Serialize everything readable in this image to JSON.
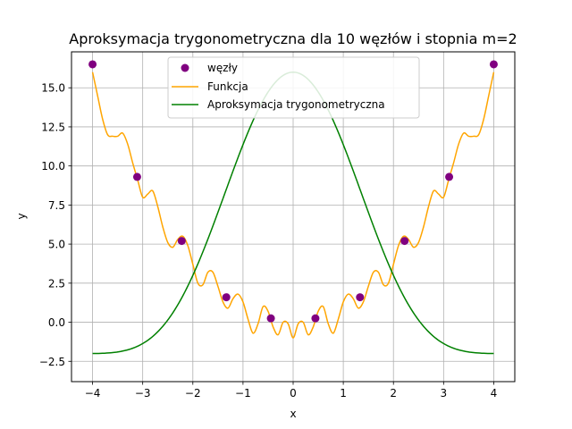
{
  "chart_data": {
    "type": "line",
    "title": "Aproksymacja trygonometryczna dla 10 węzłów i stopnia m=2",
    "xlabel": "x",
    "ylabel": "y",
    "xlim": [
      -4.42,
      4.42
    ],
    "ylim": [
      -3.8,
      17.3
    ],
    "xticks": [
      -4,
      -3,
      -2,
      -1,
      0,
      1,
      2,
      3,
      4
    ],
    "xtick_labels": [
      "−4",
      "−3",
      "−2",
      "−1",
      "0",
      "1",
      "2",
      "3",
      "4"
    ],
    "yticks": [
      -2.5,
      0.0,
      2.5,
      5.0,
      7.5,
      10.0,
      12.5,
      15.0
    ],
    "ytick_labels": [
      "−2.5",
      "0.0",
      "2.5",
      "5.0",
      "7.5",
      "10.0",
      "12.5",
      "15.0"
    ],
    "grid": true,
    "legend_position": "top-center",
    "series": [
      {
        "name": "węzły",
        "kind": "scatter",
        "color": "#800080",
        "x": [
          -4.0,
          -3.111,
          -2.222,
          -1.333,
          -0.444,
          0.444,
          1.333,
          2.222,
          3.111,
          4.0
        ],
        "y": [
          16.5,
          9.3,
          5.2,
          1.6,
          0.25,
          0.25,
          1.6,
          5.2,
          9.3,
          16.5
        ]
      },
      {
        "name": "Funkcja",
        "kind": "line",
        "color": "#ffa500",
        "x": [
          -4.0,
          -3.9,
          -3.8,
          -3.7,
          -3.6,
          -3.5,
          -3.4,
          -3.3,
          -3.2,
          -3.1,
          -3.0,
          -2.9,
          -2.8,
          -2.7,
          -2.6,
          -2.5,
          -2.4,
          -2.3,
          -2.2,
          -2.1,
          -2.0,
          -1.9,
          -1.8,
          -1.7,
          -1.6,
          -1.5,
          -1.4,
          -1.3,
          -1.2,
          -1.1,
          -1.0,
          -0.9,
          -0.8,
          -0.7,
          -0.6,
          -0.5,
          -0.4,
          -0.3,
          -0.2,
          -0.1,
          0.0,
          0.1,
          0.2,
          0.3,
          0.4,
          0.5,
          0.6,
          0.7,
          0.8,
          0.9,
          1.0,
          1.1,
          1.2,
          1.3,
          1.4,
          1.5,
          1.6,
          1.7,
          1.8,
          1.9,
          2.0,
          2.1,
          2.2,
          2.3,
          2.4,
          2.5,
          2.6,
          2.7,
          2.8,
          2.9,
          3.0,
          3.1,
          3.2,
          3.3,
          3.4,
          3.5,
          3.6,
          3.7,
          3.8,
          3.9,
          4.0
        ],
        "y": [
          16.0,
          14.5,
          13.0,
          12.0,
          11.9,
          11.9,
          12.1,
          11.4,
          10.2,
          9.1,
          8.0,
          8.2,
          8.4,
          7.4,
          6.1,
          5.1,
          4.8,
          5.3,
          5.5,
          4.9,
          3.7,
          2.5,
          2.4,
          3.2,
          3.2,
          2.3,
          1.3,
          0.9,
          1.5,
          1.8,
          1.3,
          0.2,
          -0.7,
          -0.1,
          1.0,
          0.7,
          -0.3,
          -0.8,
          0.0,
          -0.1,
          -1.0,
          -0.1,
          0.0,
          -0.8,
          -0.3,
          0.7,
          1.0,
          -0.1,
          -0.7,
          0.2,
          1.3,
          1.8,
          1.5,
          0.9,
          1.3,
          2.3,
          3.2,
          3.2,
          2.4,
          2.5,
          3.7,
          4.9,
          5.5,
          5.3,
          4.8,
          5.1,
          6.1,
          7.4,
          8.4,
          8.2,
          8.0,
          9.1,
          10.2,
          11.4,
          12.1,
          11.9,
          11.9,
          12.0,
          13.0,
          14.5,
          16.0
        ]
      },
      {
        "name": "Aproksymacja trygonometryczna",
        "kind": "line",
        "color": "#008000",
        "x_range": [
          -4,
          4
        ],
        "model": "a0 + a1*cos(pi*x/4) + a2*cos(pi*x/2)",
        "coefficients": [
          5.0,
          9.0,
          2.0
        ]
      }
    ]
  }
}
